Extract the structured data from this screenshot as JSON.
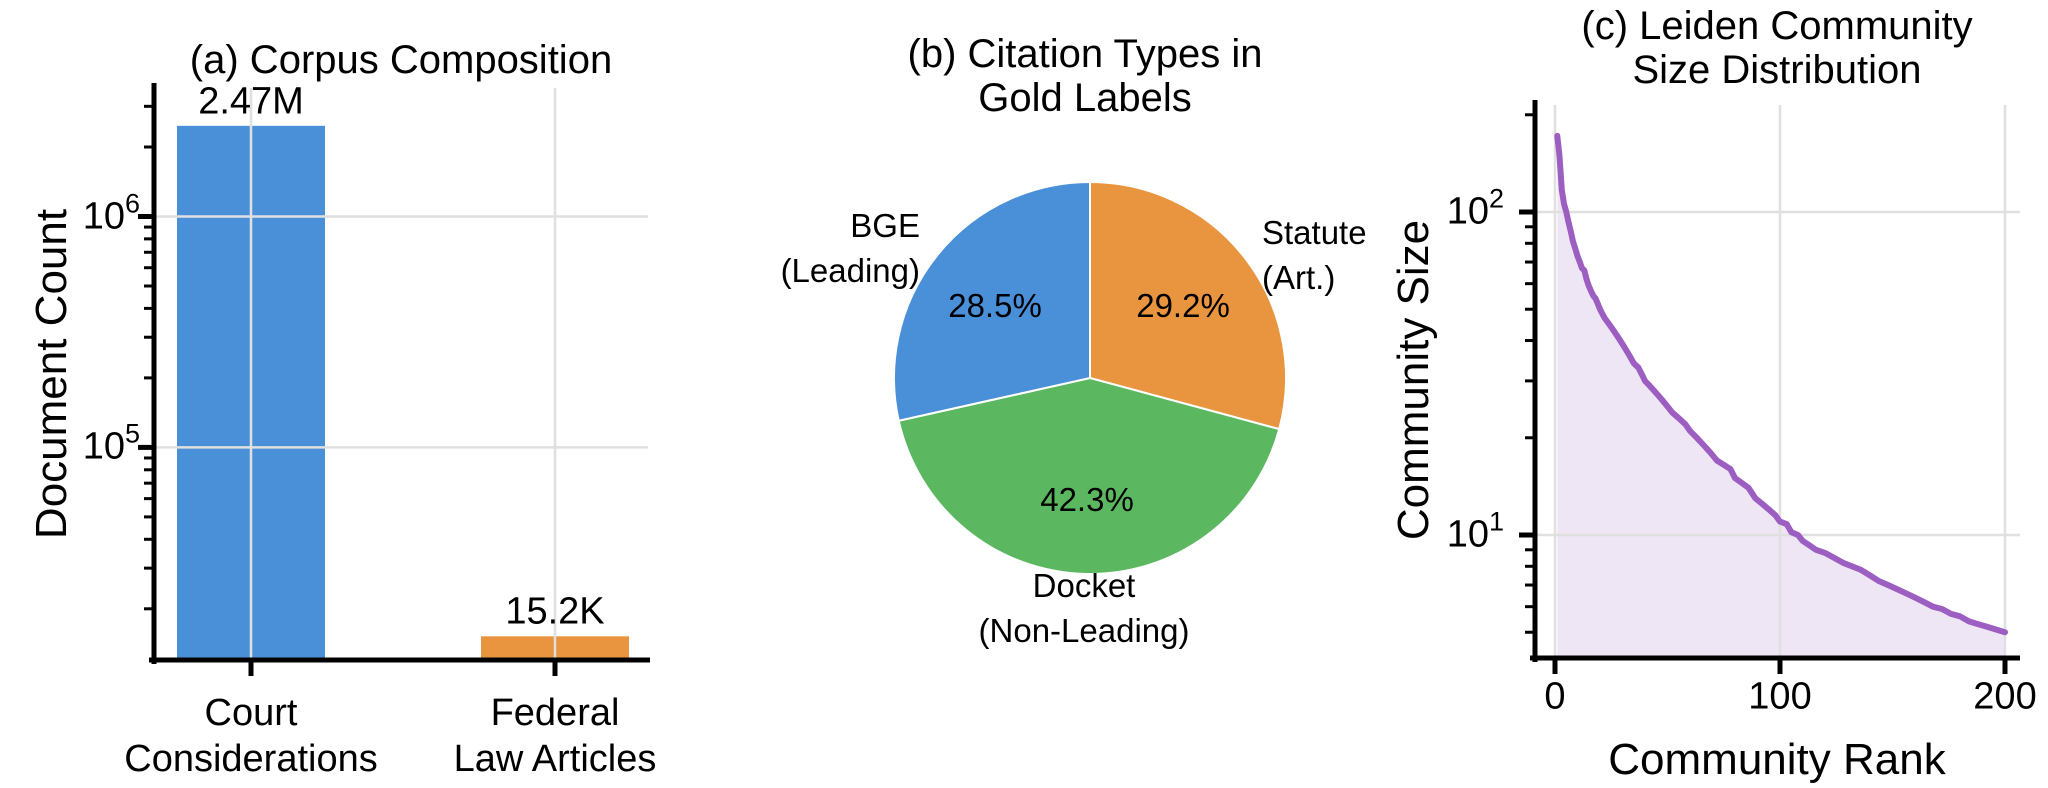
{
  "chart_data": [
    {
      "type": "bar",
      "panel": "a",
      "title": "(a) Corpus Composition",
      "ylabel": "Document Count",
      "xlabel": "",
      "yscale": "log",
      "categories": [
        "Court Considerations",
        "Federal Law Articles"
      ],
      "category_lines": [
        [
          "Court",
          "Considerations"
        ],
        [
          "Federal",
          "Law Articles"
        ]
      ],
      "values": [
        2470000,
        15200
      ],
      "value_labels": [
        "2.47M",
        "15.2K"
      ],
      "bar_colors": [
        "#4a90d8",
        "#e9943e"
      ],
      "ylim": [
        12000,
        3600000
      ],
      "ytick_values": [
        1000000,
        100000
      ],
      "ytick_labels": [
        {
          "base": "10",
          "exp": "6"
        },
        {
          "base": "10",
          "exp": "5"
        }
      ],
      "grid": true
    },
    {
      "type": "pie",
      "panel": "b",
      "title": "(b) Citation Types in Gold Labels",
      "title_lines": [
        "(b) Citation Types in",
        "Gold Labels"
      ],
      "start_angle": 90,
      "direction": "clockwise",
      "slices": [
        {
          "label": "Statute (Art.)",
          "lines": [
            "Statute",
            "(Art.)"
          ],
          "value": 29.2,
          "pct_label": "29.2%",
          "color": "#e9943e"
        },
        {
          "label": "Docket (Non-Leading)",
          "lines": [
            "Docket",
            "(Non-Leading)"
          ],
          "value": 42.3,
          "pct_label": "42.3%",
          "color": "#5cb860"
        },
        {
          "label": "BGE (Leading)",
          "lines": [
            "BGE",
            "(Leading)"
          ],
          "value": 28.5,
          "pct_label": "28.5%",
          "color": "#4a90d8"
        }
      ]
    },
    {
      "type": "area",
      "panel": "c",
      "title": "(c) Leiden Community Size Distribution",
      "title_lines": [
        "(c) Leiden Community",
        "Size Distribution"
      ],
      "xlabel": "Community Rank",
      "ylabel": "Community Size",
      "xscale": "linear",
      "yscale": "log",
      "xlim": [
        -8,
        207
      ],
      "ylim": [
        4.16,
        214
      ],
      "xtick_values": [
        0,
        100,
        200
      ],
      "xtick_labels": [
        "0",
        "100",
        "200"
      ],
      "ytick_values": [
        100,
        10
      ],
      "ytick_labels": [
        {
          "base": "10",
          "exp": "2"
        },
        {
          "base": "10",
          "exp": "1"
        }
      ],
      "line_color": "#9c5ec1",
      "fill_color": "rgba(158,101,192,0.16)",
      "grid": true,
      "points": [
        [
          1,
          172
        ],
        [
          2,
          149
        ],
        [
          3,
          117
        ],
        [
          4,
          106
        ],
        [
          5,
          100
        ],
        [
          6,
          93
        ],
        [
          7,
          87
        ],
        [
          8,
          81
        ],
        [
          9,
          77
        ],
        [
          10,
          73
        ],
        [
          11,
          70
        ],
        [
          12,
          67
        ],
        [
          13,
          66
        ],
        [
          14,
          62
        ],
        [
          15,
          59
        ],
        [
          16,
          57
        ],
        [
          17,
          55
        ],
        [
          18,
          54
        ],
        [
          19,
          52
        ],
        [
          20,
          50
        ],
        [
          22,
          47
        ],
        [
          24,
          45
        ],
        [
          25,
          44
        ],
        [
          26,
          43
        ],
        [
          28,
          41
        ],
        [
          30,
          39
        ],
        [
          32,
          37
        ],
        [
          33,
          36
        ],
        [
          35,
          34
        ],
        [
          37,
          33
        ],
        [
          39,
          31
        ],
        [
          40,
          30
        ],
        [
          42,
          29
        ],
        [
          44,
          28
        ],
        [
          46,
          27
        ],
        [
          48,
          26
        ],
        [
          50,
          25
        ],
        [
          52,
          24
        ],
        [
          55,
          23
        ],
        [
          58,
          22
        ],
        [
          60,
          21
        ],
        [
          63,
          20
        ],
        [
          66,
          19
        ],
        [
          69,
          18
        ],
        [
          72,
          17
        ],
        [
          75,
          16.5
        ],
        [
          78,
          16
        ],
        [
          80,
          15
        ],
        [
          83,
          14.5
        ],
        [
          86,
          14
        ],
        [
          89,
          13
        ],
        [
          92,
          12.5
        ],
        [
          95,
          12
        ],
        [
          98,
          11.5
        ],
        [
          100,
          11
        ],
        [
          103,
          10.8
        ],
        [
          105,
          10.2
        ],
        [
          108,
          10
        ],
        [
          110,
          9.6
        ],
        [
          113,
          9.3
        ],
        [
          116,
          9
        ],
        [
          120,
          8.8
        ],
        [
          124,
          8.5
        ],
        [
          128,
          8.2
        ],
        [
          132,
          8
        ],
        [
          136,
          7.8
        ],
        [
          140,
          7.5
        ],
        [
          144,
          7.2
        ],
        [
          148,
          7
        ],
        [
          152,
          6.8
        ],
        [
          156,
          6.6
        ],
        [
          160,
          6.4
        ],
        [
          164,
          6.2
        ],
        [
          168,
          6
        ],
        [
          172,
          5.9
        ],
        [
          176,
          5.7
        ],
        [
          180,
          5.6
        ],
        [
          184,
          5.4
        ],
        [
          188,
          5.3
        ],
        [
          192,
          5.2
        ],
        [
          196,
          5.1
        ],
        [
          200,
          5
        ]
      ]
    }
  ],
  "style": {
    "grid_color": "#e0e0e0",
    "spine_color": "#000000",
    "background": "#ffffff"
  }
}
